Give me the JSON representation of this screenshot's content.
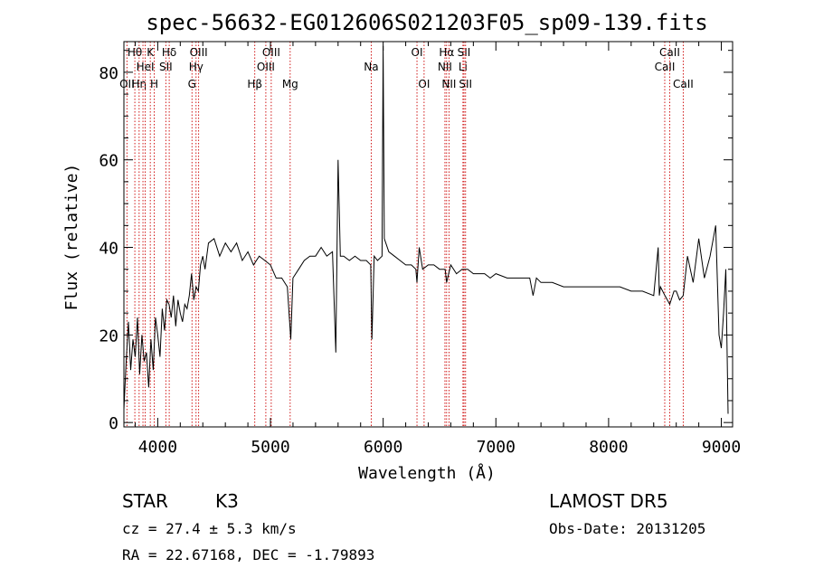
{
  "chart_data": {
    "type": "line",
    "title": "spec-56632-EG012606S021203F05_sp09-139.fits",
    "xlabel": "Wavelength (Å)",
    "ylabel": "Flux (relative)",
    "xlim": [
      3700,
      9100
    ],
    "ylim": [
      -1,
      87
    ],
    "xticks": [
      4000,
      5000,
      6000,
      7000,
      8000,
      9000
    ],
    "yticks": [
      0,
      20,
      40,
      60,
      80
    ],
    "grid": false,
    "line_color": "#000000",
    "marker_color": "#cc0000",
    "series": [
      {
        "x": [
          3700,
          3720,
          3740,
          3760,
          3780,
          3800,
          3820,
          3840,
          3860,
          3880,
          3900,
          3920,
          3940,
          3960,
          3980,
          4000,
          4020,
          4040,
          4060,
          4080,
          4100,
          4120,
          4140,
          4160,
          4180,
          4200,
          4220,
          4240,
          4260,
          4280,
          4300,
          4320,
          4340,
          4360,
          4380,
          4400,
          4420,
          4450,
          4500,
          4550,
          4600,
          4650,
          4700,
          4750,
          4800,
          4850,
          4900,
          4950,
          5000,
          5050,
          5100,
          5150,
          5180,
          5200,
          5250,
          5300,
          5350,
          5400,
          5450,
          5500,
          5550,
          5580,
          5600,
          5620,
          5650,
          5700,
          5750,
          5800,
          5850,
          5890,
          5900,
          5920,
          5950,
          5990,
          6000,
          6010,
          6050,
          6100,
          6150,
          6200,
          6250,
          6290,
          6300,
          6320,
          6350,
          6400,
          6450,
          6500,
          6550,
          6563,
          6600,
          6650,
          6700,
          6750,
          6800,
          6850,
          6900,
          6950,
          7000,
          7100,
          7200,
          7300,
          7330,
          7360,
          7400,
          7500,
          7600,
          7700,
          7800,
          7900,
          8000,
          8100,
          8200,
          8300,
          8400,
          8440,
          8450,
          8460,
          8500,
          8542,
          8580,
          8600,
          8630,
          8662,
          8700,
          8750,
          8800,
          8850,
          8900,
          8950,
          8980,
          9000,
          9020,
          9040,
          9060
        ],
        "y": [
          3,
          14,
          23,
          12,
          19,
          15,
          24,
          11,
          20,
          14,
          16,
          8,
          19,
          12,
          24,
          20,
          15,
          26,
          21,
          28,
          27,
          24,
          29,
          22,
          28,
          25,
          23,
          27,
          26,
          29,
          34,
          28,
          31,
          30,
          36,
          38,
          35,
          41,
          42,
          38,
          41,
          39,
          41,
          37,
          39,
          36,
          38,
          37,
          36,
          33,
          33,
          31,
          19,
          33,
          35,
          37,
          38,
          38,
          40,
          38,
          39,
          16,
          60,
          38,
          38,
          37,
          38,
          37,
          37,
          36,
          19,
          38,
          37,
          38,
          86,
          42,
          39,
          38,
          37,
          36,
          36,
          35,
          32,
          40,
          35,
          36,
          36,
          35,
          35,
          32,
          36,
          34,
          35,
          35,
          34,
          34,
          34,
          33,
          34,
          33,
          33,
          33,
          29,
          33,
          32,
          32,
          31,
          31,
          31,
          31,
          31,
          31,
          30,
          30,
          29,
          40,
          29,
          31,
          29,
          27,
          30,
          30,
          28,
          29,
          38,
          32,
          42,
          33,
          38,
          45,
          20,
          17,
          25,
          35,
          2
        ]
      }
    ],
    "line_markers": [
      {
        "wave": 3727,
        "label": "OII",
        "row": 3
      },
      {
        "wave": 3797,
        "label": "Hθ",
        "row": 1
      },
      {
        "wave": 3835,
        "label": "Hη",
        "row": 3
      },
      {
        "wave": 3869,
        "label": "",
        "row": 0
      },
      {
        "wave": 3889,
        "label": "HeI",
        "row": 2
      },
      {
        "wave": 3934,
        "label": "K",
        "row": 1
      },
      {
        "wave": 3969,
        "label": "H",
        "row": 3
      },
      {
        "wave": 4072,
        "label": "SII",
        "row": 2
      },
      {
        "wave": 4102,
        "label": "Hδ",
        "row": 1
      },
      {
        "wave": 4304,
        "label": "G",
        "row": 3
      },
      {
        "wave": 4340,
        "label": "Hγ",
        "row": 2
      },
      {
        "wave": 4363,
        "label": "OIII",
        "row": 1
      },
      {
        "wave": 4861,
        "label": "Hβ",
        "row": 3
      },
      {
        "wave": 4959,
        "label": "OIII",
        "row": 2
      },
      {
        "wave": 5007,
        "label": "OIII",
        "row": 1
      },
      {
        "wave": 5175,
        "label": "Mg",
        "row": 3
      },
      {
        "wave": 5894,
        "label": "Na",
        "row": 2
      },
      {
        "wave": 6300,
        "label": "OI",
        "row": 1
      },
      {
        "wave": 6363,
        "label": "OI",
        "row": 3
      },
      {
        "wave": 6548,
        "label": "NII",
        "row": 2
      },
      {
        "wave": 6563,
        "label": "Hα",
        "row": 1
      },
      {
        "wave": 6584,
        "label": "NII",
        "row": 3
      },
      {
        "wave": 6708,
        "label": "Li",
        "row": 2
      },
      {
        "wave": 6717,
        "label": "SII",
        "row": 1
      },
      {
        "wave": 6731,
        "label": "SII",
        "row": 3
      },
      {
        "wave": 8498,
        "label": "CaII",
        "row": 2
      },
      {
        "wave": 8542,
        "label": "CaII",
        "row": 1
      },
      {
        "wave": 8662,
        "label": "CaII",
        "row": 3
      }
    ]
  },
  "info": {
    "class_label": "STAR",
    "subclass": "K3",
    "survey": "LAMOST DR5",
    "cz": "cz = 27.4 ± 5.3 km/s",
    "obs_date": "Obs-Date: 20131205",
    "radec": "RA =  22.67168, DEC =  -1.79893"
  }
}
